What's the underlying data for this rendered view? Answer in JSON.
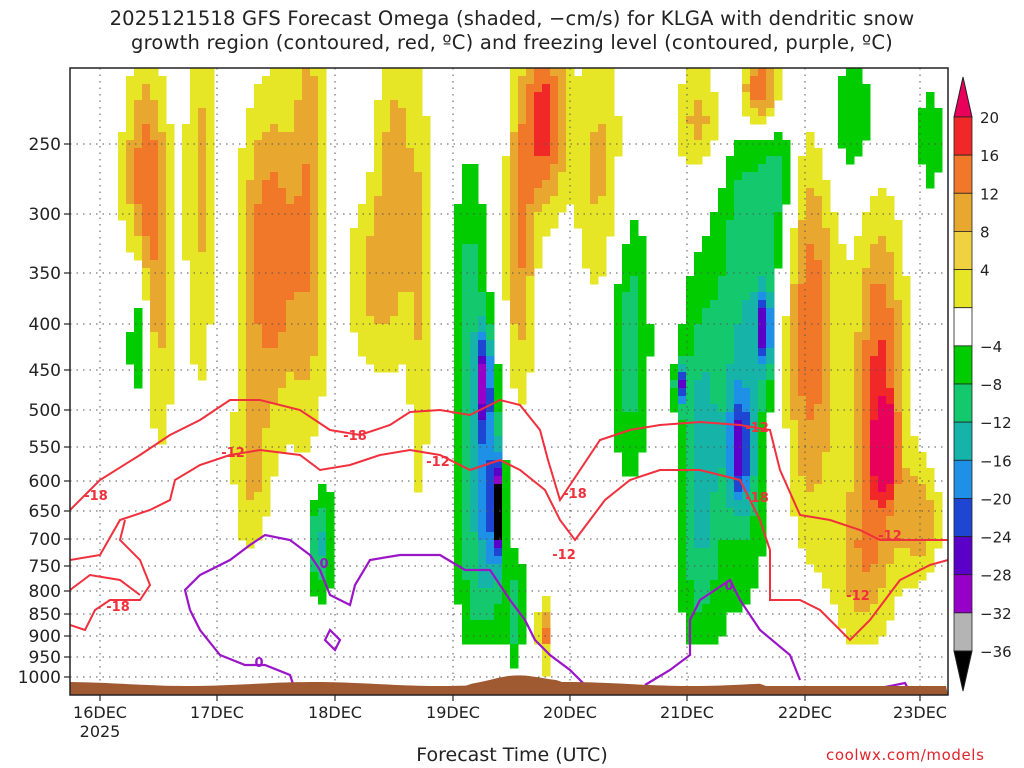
{
  "title_line1": "2025121518 GFS Forecast Omega (shaded, −cm/s) for KLGA with dendritic snow",
  "title_line2": "growth region (contoured, red, ºC) and freezing level (contoured, purple, ºC)",
  "xlabel": "Forecast Time (UTC)",
  "credit": "coolwx.com/models",
  "colors": {
    "dgz_contour": "#f0303c",
    "freezing_contour": "#9a14c8",
    "terrain": "#a05a32",
    "grid": "#555555"
  },
  "chart_data": {
    "type": "heatmap",
    "y_scale": "pressure (inverted, log-like)",
    "y_ticks": [
      250,
      300,
      350,
      400,
      450,
      500,
      550,
      600,
      650,
      700,
      750,
      800,
      850,
      900,
      950,
      1000
    ],
    "x_ticks": [
      {
        "label": "16DEC",
        "sub": "2025"
      },
      {
        "label": "17DEC",
        "sub": ""
      },
      {
        "label": "18DEC",
        "sub": ""
      },
      {
        "label": "19DEC",
        "sub": ""
      },
      {
        "label": "20DEC",
        "sub": ""
      },
      {
        "label": "21DEC",
        "sub": ""
      },
      {
        "label": "22DEC",
        "sub": ""
      },
      {
        "label": "23DEC",
        "sub": ""
      }
    ],
    "grid": "dotted",
    "colorbar": {
      "levels": [
        20,
        16,
        12,
        8,
        4,
        -4,
        -8,
        -12,
        -16,
        -20,
        -24,
        -28,
        -32,
        -36
      ],
      "colors": [
        "#e8005a",
        "#f02828",
        "#f07828",
        "#e8a830",
        "#f0d240",
        "#e6e626",
        "#ffffff",
        "#00cc00",
        "#14c86e",
        "#16b4a8",
        "#1e90e6",
        "#1e46d2",
        "#5a00c8",
        "#9600c8",
        "#b4b4b4",
        "#000000"
      ],
      "placement": "right"
    },
    "contour_labels": {
      "dgz": [
        "-18",
        "-12",
        "-18",
        "-12",
        "-18",
        "-12",
        "-18",
        "-12",
        "-18",
        "-12",
        "-12"
      ],
      "freezing": [
        "0",
        "0",
        "0"
      ]
    }
  }
}
